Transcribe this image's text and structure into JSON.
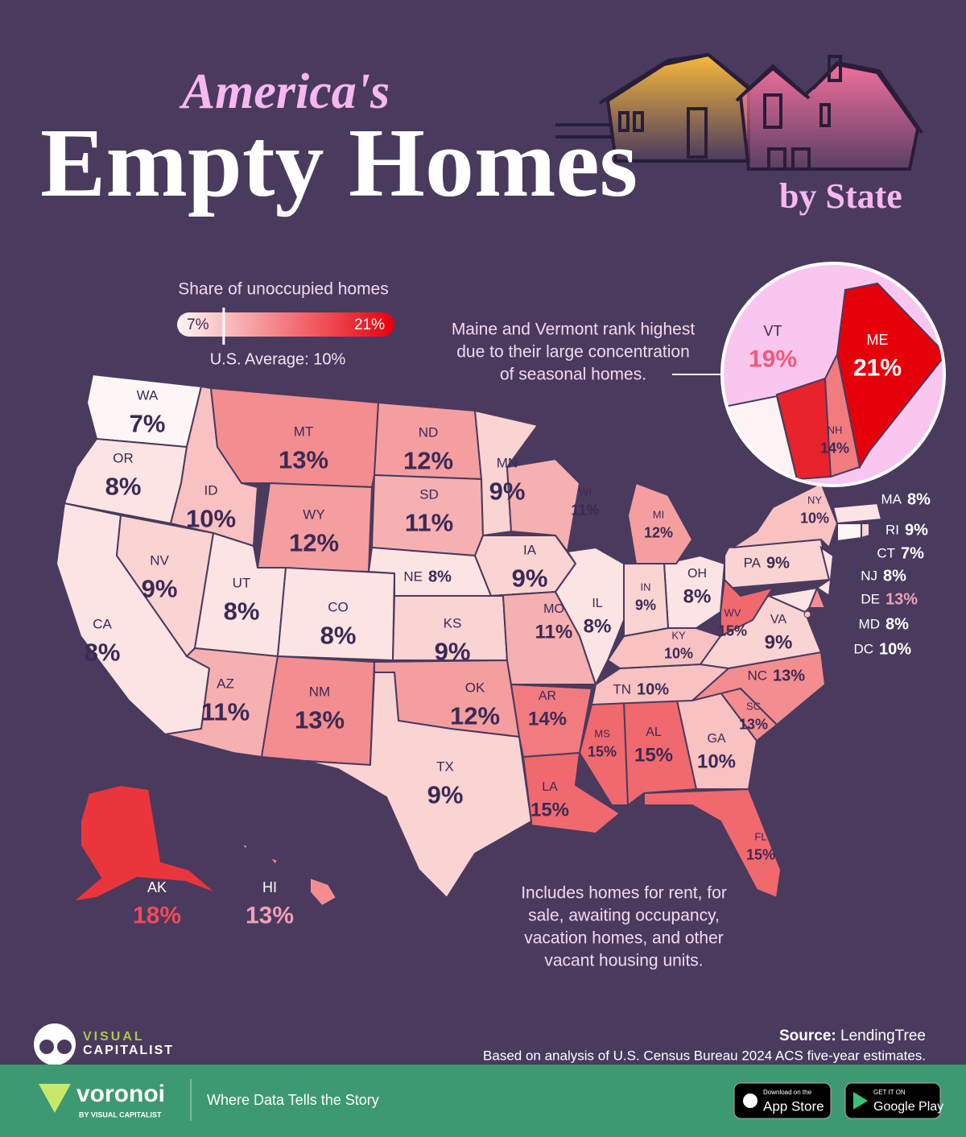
{
  "title_top": "America's",
  "title_main": "Empty Homes",
  "title_sub": "by State",
  "legend": {
    "title": "Share of unoccupied homes",
    "min": {
      "value": 7,
      "label": "7%"
    },
    "max": {
      "value": 21,
      "label": "21%"
    },
    "average": {
      "value": 10,
      "label": "U.S. Average: 10%"
    }
  },
  "states": [
    {
      "abbr": "WA",
      "value": 7,
      "value_label": "7%"
    },
    {
      "abbr": "OR",
      "value": 8,
      "value_label": "8%"
    },
    {
      "abbr": "CA",
      "value": 8,
      "value_label": "8%"
    },
    {
      "abbr": "NV",
      "value": 9,
      "value_label": "9%"
    },
    {
      "abbr": "ID",
      "value": 10,
      "value_label": "10%"
    },
    {
      "abbr": "MT",
      "value": 13,
      "value_label": "13%"
    },
    {
      "abbr": "WY",
      "value": 12,
      "value_label": "12%"
    },
    {
      "abbr": "UT",
      "value": 8,
      "value_label": "8%"
    },
    {
      "abbr": "CO",
      "value": 8,
      "value_label": "8%"
    },
    {
      "abbr": "AZ",
      "value": 11,
      "value_label": "11%"
    },
    {
      "abbr": "NM",
      "value": 13,
      "value_label": "13%"
    },
    {
      "abbr": "ND",
      "value": 12,
      "value_label": "12%"
    },
    {
      "abbr": "SD",
      "value": 11,
      "value_label": "11%"
    },
    {
      "abbr": "NE",
      "value": 8,
      "value_label": "8%"
    },
    {
      "abbr": "KS",
      "value": 9,
      "value_label": "9%"
    },
    {
      "abbr": "OK",
      "value": 12,
      "value_label": "12%"
    },
    {
      "abbr": "TX",
      "value": 9,
      "value_label": "9%"
    },
    {
      "abbr": "MN",
      "value": 9,
      "value_label": "9%"
    },
    {
      "abbr": "IA",
      "value": 9,
      "value_label": "9%"
    },
    {
      "abbr": "MO",
      "value": 11,
      "value_label": "11%"
    },
    {
      "abbr": "AR",
      "value": 14,
      "value_label": "14%"
    },
    {
      "abbr": "LA",
      "value": 15,
      "value_label": "15%"
    },
    {
      "abbr": "MS",
      "value": 15,
      "value_label": "15%"
    },
    {
      "abbr": "AL",
      "value": 15,
      "value_label": "15%"
    },
    {
      "abbr": "GA",
      "value": 10,
      "value_label": "10%"
    },
    {
      "abbr": "FL",
      "value": 15,
      "value_label": "15%"
    },
    {
      "abbr": "SC",
      "value": 13,
      "value_label": "13%"
    },
    {
      "abbr": "NC",
      "value": 13,
      "value_label": "13%"
    },
    {
      "abbr": "TN",
      "value": 10,
      "value_label": "10%"
    },
    {
      "abbr": "VA",
      "value": 9,
      "value_label": "9%"
    },
    {
      "abbr": "WV",
      "value": 15,
      "value_label": "15%"
    },
    {
      "abbr": "KY",
      "value": 10,
      "value_label": "10%"
    },
    {
      "abbr": "OH",
      "value": 8,
      "value_label": "8%"
    },
    {
      "abbr": "IN",
      "value": 9,
      "value_label": "9%"
    },
    {
      "abbr": "IL",
      "value": 8,
      "value_label": "8%"
    },
    {
      "abbr": "WI",
      "value": 11,
      "value_label": "11%"
    },
    {
      "abbr": "MI",
      "value": 12,
      "value_label": "12%"
    },
    {
      "abbr": "PA",
      "value": 9,
      "value_label": "9%"
    },
    {
      "abbr": "NY",
      "value": 10,
      "value_label": "10%"
    },
    {
      "abbr": "NJ",
      "value": 8,
      "value_label": "8%"
    },
    {
      "abbr": "DE",
      "value": 13,
      "value_label": "13%"
    },
    {
      "abbr": "MD",
      "value": 8,
      "value_label": "8%"
    },
    {
      "abbr": "DC",
      "value": 10,
      "value_label": "10%"
    },
    {
      "abbr": "CT",
      "value": 7,
      "value_label": "7%"
    },
    {
      "abbr": "RI",
      "value": 9,
      "value_label": "9%"
    },
    {
      "abbr": "MA",
      "value": 8,
      "value_label": "8%"
    },
    {
      "abbr": "VT",
      "value": 19,
      "value_label": "19%"
    },
    {
      "abbr": "NH",
      "value": 14,
      "value_label": "14%"
    },
    {
      "abbr": "ME",
      "value": 21,
      "value_label": "21%"
    },
    {
      "abbr": "AK",
      "value": 18,
      "value_label": "18%"
    },
    {
      "abbr": "HI",
      "value": 13,
      "value_label": "13%"
    }
  ],
  "callout": [
    "Maine and Vermont rank highest",
    "due to their large concentration",
    "of seasonal homes."
  ],
  "footnote": [
    "Includes homes for rent, for",
    "sale, awaiting occupancy,",
    "vacation homes, and other",
    "vacant housing units."
  ],
  "source": {
    "label": "Source:",
    "value": "LendingTree",
    "method": "Based on analysis of U.S. Census Bureau 2024 ACS five-year estimates."
  },
  "brand": {
    "top": "VISUAL",
    "bottom": "CAPITALIST"
  },
  "footer": {
    "name": "voronoi",
    "by": "BY VISUAL CAPITALIST",
    "tagline": "Where Data Tells the Story",
    "apple_small": "Download on the",
    "apple": "App Store",
    "google_small": "GET IT ON",
    "google": "Google Play"
  }
}
